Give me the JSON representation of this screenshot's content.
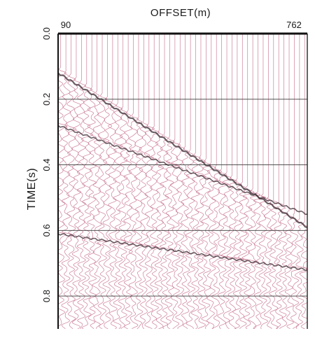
{
  "chart_data": {
    "type": "line",
    "title": "OFFSET(m)",
    "xlabel": "OFFSET(m)",
    "ylabel": "TIME(s)",
    "x_tick_labels": [
      "90",
      "762"
    ],
    "xlim": [
      90,
      762
    ],
    "y_ticks": [
      0.0,
      0.2,
      0.4,
      0.6,
      0.8
    ],
    "y_tick_labels": [
      "0.0",
      "0.2",
      "0.4",
      "0.6",
      "0.8"
    ],
    "ylim": [
      0.0,
      0.9
    ],
    "y_inverted": true,
    "grid": "horizontal",
    "trace_count": 48,
    "events": [
      {
        "name": "",
        "t_start": 0.12,
        "t_end": 0.59,
        "x": [
          90,
          762
        ]
      },
      {
        "name": "",
        "t_start": 0.28,
        "t_end": 0.55,
        "x": [
          90,
          762
        ]
      },
      {
        "name": "",
        "t_start": 0.61,
        "t_end": 0.72,
        "x": [
          90,
          762
        ]
      }
    ],
    "colors": {
      "trace": "#c8728f",
      "event": "#3c2a33",
      "frame": "#111111",
      "grid": "#3a3a3a"
    }
  }
}
